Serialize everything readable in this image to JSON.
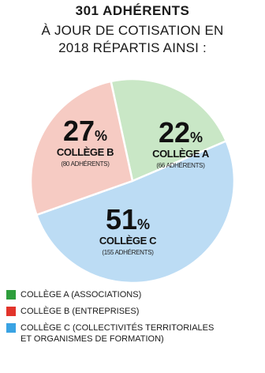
{
  "header": {
    "title": "301 ADHÉRENTS",
    "subtitle_lines": [
      "À JOUR DE COTISATION EN",
      "2018 RÉPARTIS AINSI :"
    ]
  },
  "chart_data": {
    "type": "pie",
    "slices": [
      {
        "label": "COLLÈGE A",
        "percent": 22,
        "percent_label": "22",
        "count_label": "(66 ADHÉRENTS)",
        "color": "#c9e7c6"
      },
      {
        "label": "COLLÈGE C",
        "percent": 51,
        "percent_label": "51",
        "count_label": "(155 ADHÉRENTS)",
        "color": "#bcdcf4"
      },
      {
        "label": "COLLÈGE B",
        "percent": 27,
        "percent_label": "27",
        "count_label": "(80 ADHÉRENTS)",
        "color": "#f6cbc3"
      }
    ],
    "percent_sign": "%",
    "border_color": "#ffffff"
  },
  "legend": {
    "items": [
      {
        "lines": [
          "COLLÈGE A (ASSOCIATIONS)"
        ],
        "color": "#2e9e3c"
      },
      {
        "lines": [
          "COLLÈGE B (ENTREPRISES)"
        ],
        "color": "#e2342b"
      },
      {
        "lines": [
          "COLLÈGE C (COLLECTIVITÉS TERRITORIALES",
          "ET ORGANISMES DE FORMATION)"
        ],
        "color": "#3aa3e3"
      }
    ]
  }
}
